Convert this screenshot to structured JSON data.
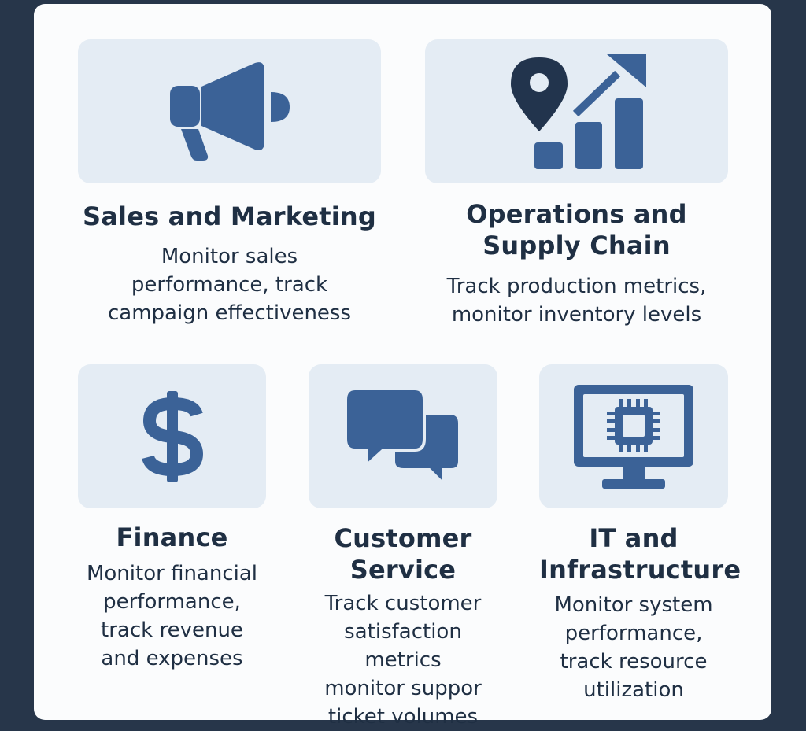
{
  "colors": {
    "background": "#27364a",
    "panel": "#fbfcfd",
    "icon_box": "#e4ecf4",
    "icon": "#3b6297",
    "icon_dark": "#22344d",
    "text": "#1f2f43"
  },
  "cards": [
    {
      "id": "sales",
      "icon": "megaphone-icon",
      "title_lines": [
        "Sales and Marketing"
      ],
      "desc_lines": [
        "Monitor sales",
        "performance, track",
        "campaign effectiveness"
      ]
    },
    {
      "id": "operations",
      "icon": "location-growth-chart-icon",
      "title_lines": [
        "Operations and",
        "Supply Chain"
      ],
      "desc_lines": [
        "Track production metrics,",
        "monitor inventory levels"
      ]
    },
    {
      "id": "finance",
      "icon": "dollar-icon",
      "title_lines": [
        "Finance"
      ],
      "desc_lines": [
        "Monitor financial",
        "performance,",
        "track revenue",
        "and expenses"
      ]
    },
    {
      "id": "customer-service",
      "icon": "chat-bubbles-icon",
      "title_lines": [
        "Customer",
        "Service"
      ],
      "desc_lines": [
        "Track customer",
        "satisfaction metrics",
        "monitor suppor",
        "ticket volumes"
      ]
    },
    {
      "id": "it",
      "icon": "monitor-chip-icon",
      "title_lines": [
        "IT and",
        "Infrastructure"
      ],
      "desc_lines": [
        "Monitor system",
        "performance,",
        "track resource",
        "utilization"
      ]
    }
  ]
}
